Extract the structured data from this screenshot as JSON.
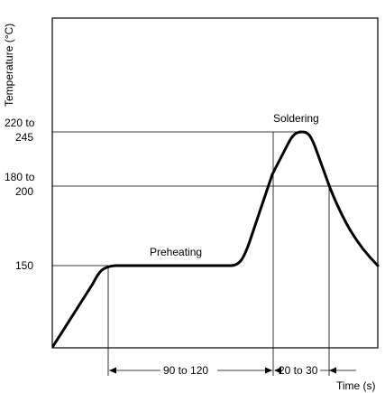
{
  "chart_data": {
    "type": "line",
    "title": "",
    "xlabel": "Time (s)",
    "ylabel": "Temperature (°C)",
    "y_tick_labels": [
      {
        "lines": [
          "220 to",
          "245"
        ],
        "value": 245
      },
      {
        "lines": [
          "180 to",
          "200"
        ],
        "value": 200
      },
      {
        "lines": [
          "150"
        ],
        "value": 150
      }
    ],
    "annotations": {
      "soldering": "Soldering",
      "preheating": "Preheating",
      "interval_preheat": "90 to 120",
      "interval_solder": "20 to 30"
    },
    "colors": {
      "curve": "#000000",
      "frame": "#000000",
      "guides": "#000000",
      "background": "#ffffff"
    },
    "grid": false,
    "legend": "none"
  }
}
